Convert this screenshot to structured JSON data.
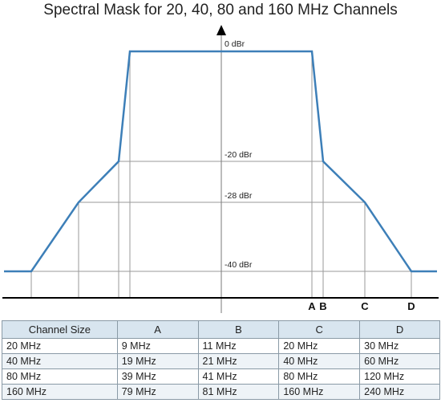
{
  "title": "Spectral Mask for 20, 40, 80 and 160 MHz Channels",
  "levels": {
    "top": "0 dBr",
    "l20": "-20 dBr",
    "l28": "-28 dBr",
    "l40": "-40 dBr"
  },
  "points": {
    "a": "A",
    "b": "B",
    "c": "C",
    "d": "D"
  },
  "colors": {
    "mask_line": "#3d7fb8",
    "grid_line": "#9a9a9a",
    "axis": "#000000",
    "table_header": "#d8e5ef"
  },
  "table": {
    "headers": [
      "Channel Size",
      "A",
      "B",
      "C",
      "D"
    ],
    "rows": [
      [
        "20 MHz",
        "9 MHz",
        "11 MHz",
        "20 MHz",
        "30 MHz"
      ],
      [
        "40 MHz",
        "19 MHz",
        "21 MHz",
        "40 MHz",
        "60 MHz"
      ],
      [
        "80 MHz",
        "39 MHz",
        "41 MHz",
        "80 MHz",
        "120 MHz"
      ],
      [
        "160 MHz",
        "79 MHz",
        "81 MHz",
        "160 MHz",
        "240 MHz"
      ]
    ]
  }
}
